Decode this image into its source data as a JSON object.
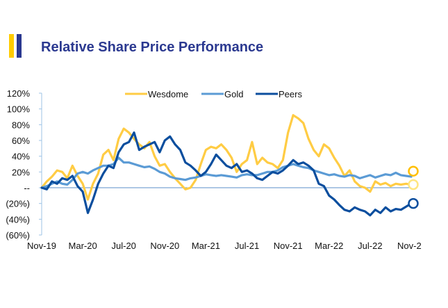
{
  "header": {
    "title": "Relative Share Price Performance",
    "accent_colors": [
      "#FFCC00",
      "#2B3990"
    ]
  },
  "chart_data": {
    "type": "line",
    "title": "Relative Share Price Performance",
    "xlabel": "",
    "ylabel": "",
    "ylim": [
      -0.6,
      1.2
    ],
    "y_ticks": [
      1.2,
      1.0,
      0.8,
      0.6,
      0.4,
      0.2,
      0,
      -0.2,
      -0.4,
      -0.6
    ],
    "y_tick_labels": [
      "120%",
      "100%",
      "80%",
      "60%",
      "40%",
      "20%",
      "--",
      "(20%)",
      "(40%)",
      "(60%)"
    ],
    "x_tick_labels": [
      "Nov-19",
      "Mar-20",
      "Jul-20",
      "Nov-20",
      "Mar-21",
      "Jul-21",
      "Nov-21",
      "Mar-22",
      "Jul-22",
      "Nov-2"
    ],
    "x_range_months": [
      0,
      36
    ],
    "legend": {
      "placement": "top-center",
      "entries": [
        "Wesdome",
        "Gold",
        "Peers"
      ]
    },
    "grid": false,
    "zero_line": true,
    "x_months": [
      0,
      0.5,
      1,
      1.5,
      2,
      2.5,
      3,
      3.5,
      4,
      4.5,
      5,
      5.5,
      6,
      6.5,
      7,
      7.5,
      8,
      8.5,
      9,
      9.5,
      10,
      10.5,
      11,
      11.5,
      12,
      12.5,
      13,
      13.5,
      14,
      14.5,
      15,
      15.5,
      16,
      16.5,
      17,
      17.5,
      18,
      18.5,
      19,
      19.5,
      20,
      20.5,
      21,
      21.5,
      22,
      22.5,
      23,
      23.5,
      24,
      24.5,
      25,
      25.5,
      26,
      26.5,
      27,
      27.5,
      28,
      28.5,
      29,
      29.5,
      30,
      30.5,
      31,
      31.5,
      32,
      32.5,
      33,
      33.5,
      34,
      34.5,
      35,
      35.5,
      36
    ],
    "series": [
      {
        "name": "Wesdome",
        "color": "#FFCC44",
        "end_marker_color": "#FFE680",
        "values": [
          0.0,
          0.08,
          0.14,
          0.22,
          0.2,
          0.12,
          0.28,
          0.15,
          0.05,
          -0.15,
          0.05,
          0.18,
          0.42,
          0.48,
          0.35,
          0.62,
          0.75,
          0.7,
          0.62,
          0.55,
          0.5,
          0.58,
          0.4,
          0.28,
          0.3,
          0.2,
          0.12,
          0.05,
          -0.02,
          0.0,
          0.1,
          0.3,
          0.48,
          0.52,
          0.5,
          0.55,
          0.48,
          0.38,
          0.2,
          0.3,
          0.35,
          0.58,
          0.3,
          0.38,
          0.32,
          0.3,
          0.25,
          0.35,
          0.7,
          0.92,
          0.88,
          0.82,
          0.62,
          0.48,
          0.4,
          0.55,
          0.5,
          0.38,
          0.28,
          0.15,
          0.22,
          0.08,
          0.02,
          0.0,
          -0.05,
          0.08,
          0.04,
          0.06,
          0.02,
          0.05,
          0.04,
          0.05,
          0.04
        ]
      },
      {
        "name": "Gold",
        "color": "#5B9BD5",
        "end_marker_color": "#FFBF00",
        "values": [
          0.0,
          0.02,
          0.05,
          0.08,
          0.05,
          0.04,
          0.1,
          0.18,
          0.2,
          0.18,
          0.22,
          0.25,
          0.28,
          0.28,
          0.3,
          0.38,
          0.32,
          0.32,
          0.3,
          0.28,
          0.26,
          0.27,
          0.24,
          0.2,
          0.18,
          0.14,
          0.12,
          0.11,
          0.1,
          0.12,
          0.13,
          0.15,
          0.17,
          0.16,
          0.15,
          0.16,
          0.15,
          0.14,
          0.13,
          0.16,
          0.17,
          0.16,
          0.16,
          0.18,
          0.2,
          0.2,
          0.22,
          0.26,
          0.28,
          0.3,
          0.28,
          0.26,
          0.25,
          0.22,
          0.2,
          0.18,
          0.16,
          0.17,
          0.15,
          0.14,
          0.16,
          0.15,
          0.12,
          0.14,
          0.16,
          0.13,
          0.15,
          0.17,
          0.16,
          0.19,
          0.16,
          0.15,
          0.14
        ]
      },
      {
        "name": "Peers",
        "color": "#0B4E9E",
        "end_marker_color": "#0B4E9E",
        "values": [
          0.0,
          -0.02,
          0.08,
          0.05,
          0.12,
          0.1,
          0.15,
          0.02,
          -0.05,
          -0.32,
          -0.15,
          0.05,
          0.18,
          0.28,
          0.25,
          0.45,
          0.55,
          0.58,
          0.7,
          0.48,
          0.52,
          0.55,
          0.58,
          0.45,
          0.6,
          0.65,
          0.55,
          0.48,
          0.32,
          0.28,
          0.22,
          0.15,
          0.2,
          0.3,
          0.42,
          0.35,
          0.28,
          0.25,
          0.3,
          0.2,
          0.22,
          0.18,
          0.12,
          0.1,
          0.15,
          0.2,
          0.18,
          0.22,
          0.28,
          0.35,
          0.3,
          0.32,
          0.28,
          0.22,
          0.05,
          0.02,
          -0.1,
          -0.15,
          -0.22,
          -0.28,
          -0.3,
          -0.25,
          -0.28,
          -0.3,
          -0.35,
          -0.28,
          -0.32,
          -0.25,
          -0.3,
          -0.27,
          -0.28,
          -0.24,
          -0.2
        ]
      }
    ]
  }
}
